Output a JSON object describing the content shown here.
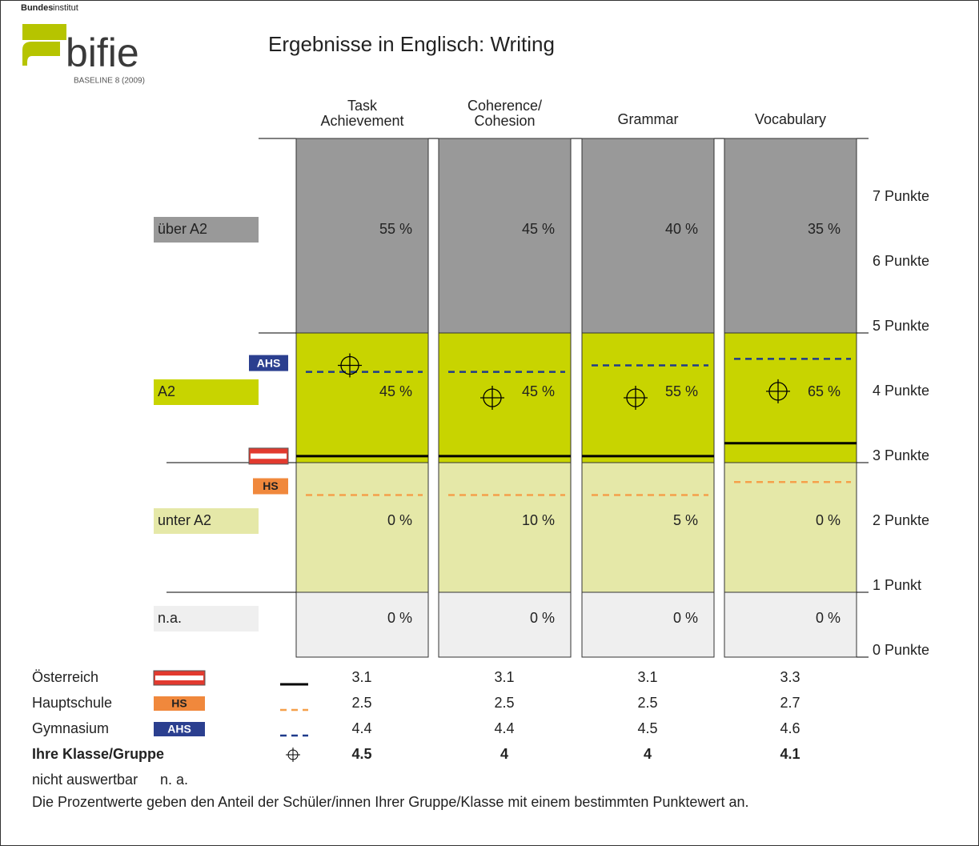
{
  "logo": {
    "prefix": "Bundes",
    "suffix": "institut",
    "name": "bifie",
    "subtitle": "BASELINE 8 (2009)"
  },
  "chart_data": {
    "type": "banded-levels",
    "title": "Ergebnisse in Englisch: Writing",
    "categories": [
      [
        "Task",
        "Achievement"
      ],
      [
        "Coherence/",
        "Cohesion"
      ],
      [
        "Grammar"
      ],
      [
        "Vocabulary"
      ]
    ],
    "ylim": [
      0,
      8
    ],
    "yticks": [
      {
        "value": 0,
        "label": "0 Punkte"
      },
      {
        "value": 1,
        "label": "1 Punkt"
      },
      {
        "value": 2,
        "label": "2 Punkte"
      },
      {
        "value": 3,
        "label": "3 Punkte"
      },
      {
        "value": 4,
        "label": "4 Punkte"
      },
      {
        "value": 5,
        "label": "5 Punkte"
      },
      {
        "value": 6,
        "label": "6 Punkte"
      },
      {
        "value": 7,
        "label": "7 Punkte"
      }
    ],
    "bands": [
      {
        "name": "n.a.",
        "range": [
          0,
          1
        ],
        "color": "#efefef",
        "values": [
          0,
          0,
          0,
          0
        ],
        "value_labels": [
          "0 %",
          "0 %",
          "0 %",
          "0 %"
        ]
      },
      {
        "name": "unter A2",
        "range": [
          1,
          3
        ],
        "color": "#e5e8a8",
        "values": [
          0,
          10,
          5,
          0
        ],
        "value_labels": [
          "0 %",
          "10 %",
          "5 %",
          "0 %"
        ]
      },
      {
        "name": "A2",
        "range": [
          3,
          5
        ],
        "color": "#c8d400",
        "values": [
          45,
          45,
          55,
          65
        ],
        "value_labels": [
          "45 %",
          "45 %",
          "55 %",
          "65 %"
        ]
      },
      {
        "name": "über A2",
        "range": [
          5,
          8
        ],
        "color": "#999999",
        "values": [
          55,
          45,
          40,
          35
        ],
        "value_labels": [
          "55 %",
          "45 %",
          "40 %",
          "35 %"
        ]
      }
    ],
    "series": [
      {
        "name": "Österreich",
        "marker": "flag",
        "color": "#000000",
        "style": "solid",
        "values": [
          3.1,
          3.1,
          3.1,
          3.3
        ]
      },
      {
        "name": "Hauptschule",
        "badge": "HS",
        "badge_color": "#f0883c",
        "color": "#f5a04a",
        "style": "dashed",
        "values": [
          2.5,
          2.5,
          2.5,
          2.7
        ]
      },
      {
        "name": "Gymnasium",
        "badge": "AHS",
        "badge_color": "#2b3f8f",
        "color": "#1f3b8c",
        "style": "dashed",
        "values": [
          4.4,
          4.4,
          4.5,
          4.6
        ]
      },
      {
        "name": "Ihre Klasse/Gruppe",
        "marker": "crosshair",
        "color": "#000000",
        "values": [
          4.5,
          4,
          4,
          4.1
        ]
      }
    ],
    "notes": {
      "na_label": "nicht auswertbar",
      "na_abbr": "n. a.",
      "footnote": "Die Prozentwerte geben den Anteil der Schüler/innen Ihrer Gruppe/Klasse mit einem bestimmten Punktewert an."
    }
  }
}
